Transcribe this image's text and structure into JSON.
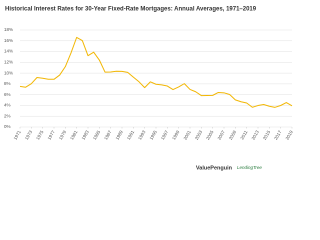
{
  "chart_data": {
    "type": "line",
    "title": "Historical Interest Rates for 30-Year Fixed-Rate Mortgages: Annual Averages, 1971–2019",
    "x": [
      1971,
      1972,
      1973,
      1974,
      1975,
      1976,
      1977,
      1978,
      1979,
      1980,
      1981,
      1982,
      1983,
      1984,
      1985,
      1986,
      1987,
      1988,
      1989,
      1990,
      1991,
      1992,
      1993,
      1994,
      1995,
      1996,
      1997,
      1998,
      1999,
      2000,
      2001,
      2002,
      2003,
      2004,
      2005,
      2006,
      2007,
      2008,
      2009,
      2010,
      2011,
      2012,
      2013,
      2014,
      2015,
      2016,
      2017,
      2018,
      2019
    ],
    "series": [
      {
        "name": "30-Year Fixed-Rate Mortgage",
        "color": "#f2b705",
        "values": [
          7.54,
          7.38,
          8.04,
          9.19,
          9.04,
          8.86,
          8.85,
          9.64,
          11.2,
          13.74,
          16.63,
          16.04,
          13.24,
          13.88,
          12.43,
          10.19,
          10.21,
          10.34,
          10.32,
          10.13,
          9.25,
          8.39,
          7.31,
          8.38,
          7.93,
          7.81,
          7.6,
          6.94,
          7.44,
          8.05,
          6.97,
          6.54,
          5.83,
          5.84,
          5.87,
          6.41,
          6.34,
          6.03,
          5.04,
          4.69,
          4.45,
          3.66,
          3.98,
          4.17,
          3.85,
          3.65,
          3.99,
          4.54,
          3.94
        ]
      }
    ],
    "xlim": [
      1971,
      2019
    ],
    "xticks": [
      1971,
      1973,
      1975,
      1977,
      1979,
      1981,
      1983,
      1985,
      1987,
      1989,
      1991,
      1993,
      1995,
      1997,
      1999,
      2001,
      2003,
      2005,
      2007,
      2009,
      2011,
      2013,
      2015,
      2017,
      2019
    ],
    "ylim": [
      0,
      18
    ],
    "yticks": [
      {
        "value": 0,
        "label": "0%"
      },
      {
        "value": 2,
        "label": "2%"
      },
      {
        "value": 4,
        "label": "4%"
      },
      {
        "value": 6,
        "label": "6%"
      },
      {
        "value": 8,
        "label": "8%"
      },
      {
        "value": 10,
        "label": "10%"
      },
      {
        "value": 12,
        "label": "12%"
      },
      {
        "value": 14,
        "label": "14%"
      },
      {
        "value": 16,
        "label": "16%"
      },
      {
        "value": 18,
        "label": "18%"
      }
    ],
    "grid": true,
    "sources": [
      "ValuePenguin",
      "LendingTree"
    ]
  }
}
